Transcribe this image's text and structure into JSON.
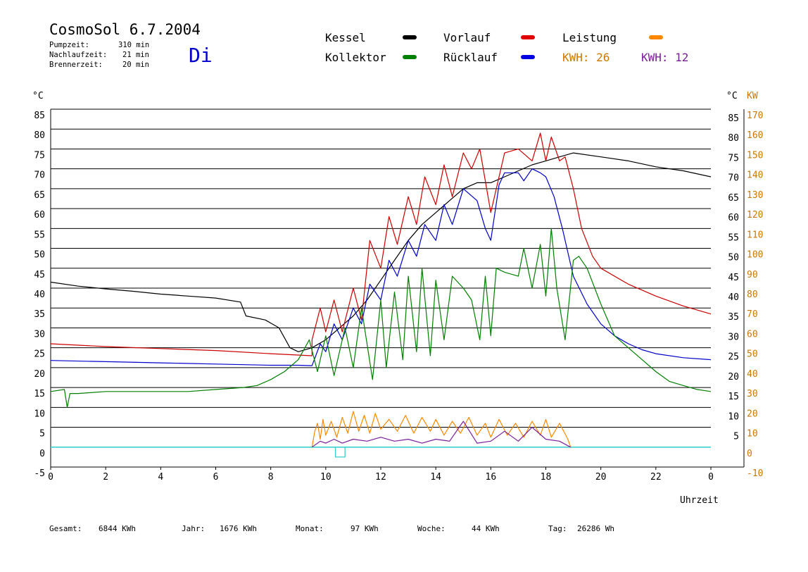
{
  "header": {
    "title": "CosmoSol 6.7.2004",
    "day": "Di",
    "info": [
      {
        "label": "Pumpzeit:",
        "value": "310 min"
      },
      {
        "label": "Nachlaufzeit:",
        "value": "21 min"
      },
      {
        "label": "Brennerzeit:",
        "value": "20 min"
      }
    ]
  },
  "legend": {
    "kessel": "Kessel",
    "kollektor": "Kollektor",
    "vorlauf": "Vorlauf",
    "ruecklauf": "Rücklauf",
    "leistung": "Leistung",
    "kwh1": "KWH: 26",
    "kwh2": "KWH: 12"
  },
  "colors": {
    "kessel": "#000000",
    "kollektor": "#008000",
    "vorlauf": "#cc0000",
    "ruecklauf": "#0000cc",
    "leistung": "#ff8800",
    "kwh1": "#cc7700",
    "kwh2": "#7a1f99",
    "zero_line": "#33cccc"
  },
  "footer": [
    {
      "label": "Gesamt:",
      "value": "6844 KWh"
    },
    {
      "label": "Jahr:",
      "value": "1676 KWh"
    },
    {
      "label": "Monat:",
      "value": "97 KWh"
    },
    {
      "label": "Woche:",
      "value": "44 KWh"
    },
    {
      "label": "Tag:",
      "value": "26286 Wh"
    }
  ],
  "chart_data": {
    "type": "line",
    "xlabel": "Uhrzeit",
    "ylabel_left": "°C",
    "ylabel_right": [
      "°C",
      "KW"
    ],
    "xlim": [
      0,
      24
    ],
    "ylim": [
      -5,
      85
    ],
    "kw_lim": [
      -10,
      170
    ],
    "grid": "horizontal",
    "x_ticks": [
      "0",
      "2",
      "4",
      "6",
      "8",
      "10",
      "12",
      "14",
      "16",
      "18",
      "20",
      "22",
      "0"
    ],
    "y_ticks_left": [
      "85",
      "80",
      "75",
      "70",
      "65",
      "60",
      "55",
      "50",
      "45",
      "40",
      "35",
      "30",
      "25",
      "20",
      "15",
      "10",
      "5",
      "0",
      "-5"
    ],
    "y_ticks_right": [
      "85",
      "80",
      "75",
      "70",
      "65",
      "60",
      "55",
      "50",
      "45",
      "40",
      "35",
      "30",
      "25",
      "20",
      "15",
      "10",
      "5"
    ],
    "kw_ticks": [
      "170",
      "160",
      "150",
      "140",
      "130",
      "120",
      "110",
      "100",
      "90",
      "80",
      "70",
      "60",
      "50",
      "40",
      "30",
      "20",
      "10",
      "0",
      "-10"
    ],
    "series": [
      {
        "name": "Kessel",
        "key": "kessel",
        "x": [
          0,
          1,
          2,
          3,
          4,
          5,
          6,
          6.9,
          7.1,
          7.8,
          8.3,
          8.7,
          9,
          9.5,
          10,
          10.5,
          11,
          11.5,
          12,
          12.5,
          13,
          13.5,
          14,
          14.5,
          15,
          15.5,
          16,
          16.5,
          17,
          17.5,
          18,
          18.5,
          19,
          20,
          21,
          22,
          23,
          24
        ],
        "y": [
          41.5,
          40.5,
          39.8,
          39.2,
          38.5,
          38,
          37.5,
          36.5,
          33,
          32,
          30,
          25,
          24,
          25,
          27,
          30,
          33,
          37,
          42,
          47,
          52,
          56,
          59,
          62,
          65,
          66.5,
          66.5,
          68,
          69.5,
          71,
          72,
          73,
          74,
          73,
          72,
          70.5,
          69.5,
          68
        ]
      },
      {
        "name": "Kollektor",
        "key": "kollektor",
        "x": [
          0,
          0.5,
          0.6,
          0.7,
          1,
          2,
          3,
          4,
          5,
          6,
          7,
          7.5,
          8,
          8.5,
          9,
          9.4,
          9.7,
          10,
          10.3,
          10.7,
          11,
          11.3,
          11.7,
          12,
          12.2,
          12.5,
          12.8,
          13,
          13.3,
          13.5,
          13.8,
          14,
          14.3,
          14.6,
          15,
          15.3,
          15.6,
          15.8,
          16,
          16.2,
          16.5,
          17,
          17.2,
          17.5,
          17.8,
          18,
          18.2,
          18.4,
          18.7,
          19,
          19.2,
          19.5,
          20,
          20.5,
          21,
          21.5,
          22,
          22.5,
          23,
          23.5,
          24
        ],
        "y": [
          14,
          14.5,
          10,
          13.5,
          13.5,
          14,
          14,
          14,
          14,
          14.5,
          15,
          15.5,
          17,
          19,
          22,
          27,
          19,
          28,
          18,
          30,
          20,
          35,
          17,
          37,
          20,
          39,
          22,
          43,
          24,
          45,
          23,
          42,
          27,
          43,
          40,
          37,
          27,
          43,
          28,
          45,
          44,
          43,
          50,
          40,
          51,
          38,
          55,
          40,
          27,
          47,
          48,
          45,
          36,
          28,
          25,
          22,
          19,
          16.5,
          15.5,
          14.5,
          14
        ]
      },
      {
        "name": "Vorlauf",
        "key": "vorlauf",
        "x": [
          0,
          2,
          4,
          6,
          8,
          9.5,
          9.5,
          9.8,
          10,
          10.3,
          10.6,
          11,
          11.3,
          11.6,
          12,
          12.3,
          12.6,
          13,
          13.3,
          13.6,
          14,
          14.3,
          14.6,
          15,
          15.3,
          15.6,
          16,
          16.5,
          17,
          17.5,
          17.8,
          18,
          18.2,
          18.5,
          18.7,
          19,
          19.3,
          19.7,
          20,
          21,
          22,
          23,
          24
        ],
        "y": [
          26,
          25.3,
          24.8,
          24.3,
          23.5,
          23,
          27,
          35,
          29,
          37,
          29,
          40,
          32,
          52,
          45,
          58,
          51,
          63,
          56,
          68,
          61,
          71,
          63,
          74,
          70,
          75,
          59,
          74,
          75,
          72,
          79,
          72,
          78,
          72,
          73,
          65,
          55,
          48,
          45,
          41,
          38,
          35.5,
          33.5
        ]
      },
      {
        "name": "Rücklauf",
        "key": "ruecklauf",
        "x": [
          0,
          2,
          4,
          6,
          8,
          9,
          9.5,
          9.8,
          10,
          10.3,
          10.6,
          11,
          11.3,
          11.6,
          12,
          12.3,
          12.6,
          13,
          13.3,
          13.6,
          14,
          14.3,
          14.6,
          15,
          15.5,
          15.8,
          16,
          16.3,
          16.5,
          17,
          17.2,
          17.5,
          17.8,
          18,
          18.3,
          18.6,
          19,
          19.5,
          20,
          20.5,
          21,
          21.5,
          22,
          23,
          24
        ],
        "y": [
          21.8,
          21.5,
          21.2,
          20.9,
          20.6,
          20.6,
          20.5,
          26,
          24,
          31,
          27,
          35,
          31,
          41,
          37,
          47,
          43,
          52,
          48,
          56,
          52,
          61,
          56,
          65,
          62,
          55,
          52,
          66,
          69,
          69,
          67,
          70,
          69,
          68,
          63,
          55,
          43,
          36,
          31,
          28,
          26,
          24.5,
          23.5,
          22.5,
          22
        ]
      },
      {
        "name": "Leistung",
        "key": "leistung",
        "x": [
          9.5,
          9.6,
          9.7,
          9.8,
          9.9,
          10,
          10.2,
          10.4,
          10.6,
          10.8,
          11,
          11.2,
          11.4,
          11.6,
          11.8,
          12,
          12.3,
          12.6,
          12.9,
          13.2,
          13.5,
          13.8,
          14,
          14.3,
          14.6,
          14.9,
          15.2,
          15.5,
          15.8,
          16,
          16.3,
          16.6,
          16.9,
          17.2,
          17.5,
          17.8,
          18,
          18.2,
          18.5,
          18.8,
          18.9
        ],
        "y": [
          0,
          8,
          12,
          4,
          14,
          6,
          13,
          5,
          15,
          7,
          18,
          8,
          16,
          7,
          17,
          9,
          14,
          8,
          16,
          7,
          15,
          8,
          14,
          6,
          13,
          7,
          15,
          6,
          12,
          5,
          14,
          6,
          12,
          5,
          13,
          6,
          14,
          5,
          12,
          4,
          0
        ]
      },
      {
        "name": "KWH 12",
        "key": "kwh2",
        "x": [
          9.5,
          9.8,
          10,
          10.3,
          10.6,
          11,
          11.5,
          12,
          12.5,
          13,
          13.5,
          14,
          14.5,
          15,
          15.5,
          16,
          16.5,
          17,
          17.5,
          18,
          18.5,
          18.9
        ],
        "y": [
          0,
          3,
          2,
          4,
          2,
          4,
          3,
          5,
          3,
          4,
          2,
          4,
          3,
          13,
          2,
          3,
          8,
          3,
          10,
          4,
          3,
          0
        ]
      }
    ]
  }
}
